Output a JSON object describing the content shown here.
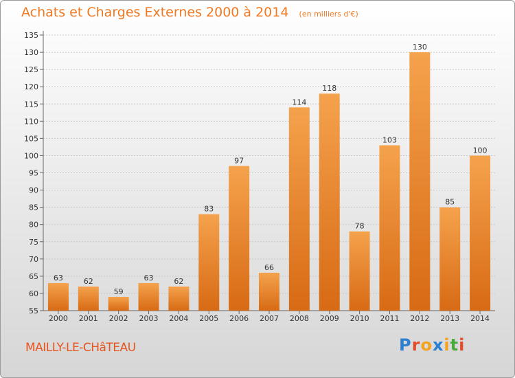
{
  "header": {
    "title": "Achats et Charges Externes 2000 à 2014",
    "unit": "(en milliers d'€)"
  },
  "footer": {
    "commune": "MAILLY-LE-CHâTEAU",
    "brand": "Proxiti",
    "brand_letters": [
      {
        "char": "P",
        "color": "#2a7fd0"
      },
      {
        "char": "r",
        "color": "#e24b2a"
      },
      {
        "char": "o",
        "color": "#f2a21e"
      },
      {
        "char": "x",
        "color": "#2a7fd0"
      },
      {
        "char": "i",
        "color": "#f2a21e"
      },
      {
        "char": "t",
        "color": "#4aa83a"
      },
      {
        "char": "i",
        "color": "#e24b2a"
      }
    ]
  },
  "colors": {
    "bar_light": "#f5a24c",
    "bar_dark": "#d86a14",
    "axis": "#666666",
    "grid": "#c8c8c8",
    "title": "#f07820"
  },
  "chart_data": {
    "type": "bar",
    "categories": [
      "2000",
      "2001",
      "2002",
      "2003",
      "2004",
      "2005",
      "2006",
      "2007",
      "2008",
      "2009",
      "2010",
      "2011",
      "2012",
      "2013",
      "2014"
    ],
    "values": [
      63,
      62,
      59,
      63,
      62,
      83,
      97,
      66,
      114,
      118,
      78,
      103,
      130,
      85,
      100
    ],
    "ylim": [
      55,
      135
    ],
    "yticks": [
      55,
      60,
      65,
      70,
      75,
      80,
      85,
      90,
      95,
      100,
      105,
      110,
      115,
      120,
      125,
      130,
      135
    ],
    "grid": true,
    "xlabel": "",
    "ylabel": ""
  }
}
